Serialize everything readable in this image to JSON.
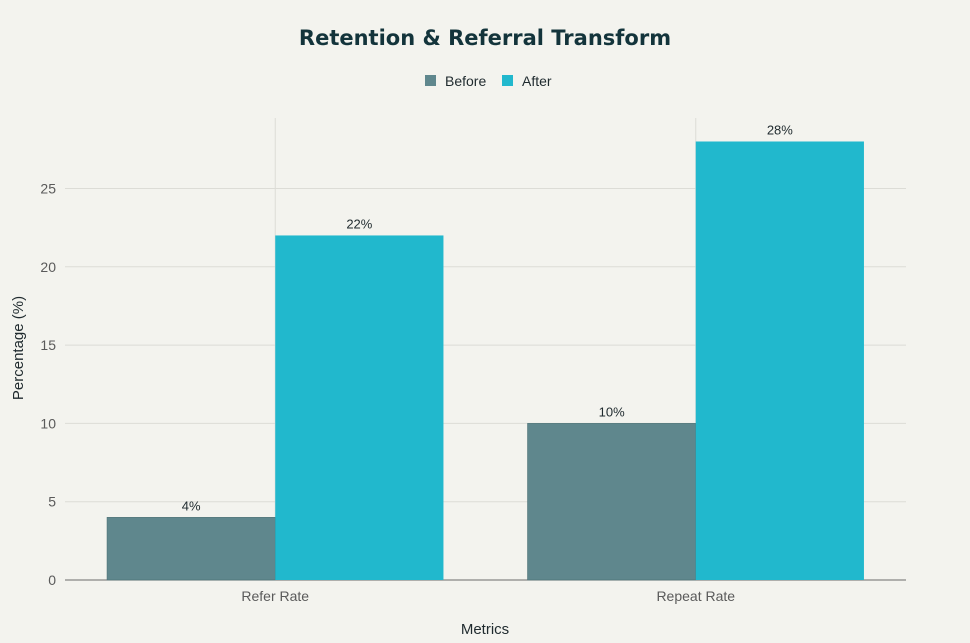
{
  "chart_data": {
    "type": "bar",
    "title": "Retention & Referral Transform",
    "xlabel": "Metrics",
    "ylabel": "Percentage (%)",
    "categories": [
      "Refer Rate",
      "Repeat Rate"
    ],
    "series": [
      {
        "name": "Before",
        "values": [
          4,
          10
        ],
        "labels": [
          "4%",
          "10%"
        ],
        "color": "#5f878d"
      },
      {
        "name": "After",
        "values": [
          22,
          28
        ],
        "labels": [
          "22%",
          "28%"
        ],
        "color": "#21b8cd"
      }
    ],
    "ylim": [
      0,
      29.5
    ],
    "yticks": [
      0,
      5,
      10,
      15,
      20,
      25
    ],
    "grid": true,
    "legend_position": "top-center"
  }
}
